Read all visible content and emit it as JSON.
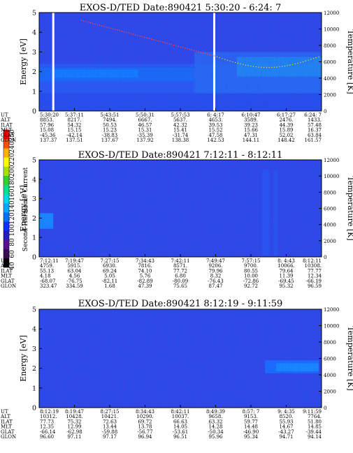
{
  "colorbar": {
    "label": "Second Harmonic Current",
    "ticks": [
      "40",
      "60",
      "80",
      "100",
      "120",
      "140",
      "160",
      "180",
      "200",
      "220",
      "240",
      "250"
    ],
    "colors": [
      "#000000",
      "#3a0a55",
      "#5a1090",
      "#2020c0",
      "#1030ff",
      "#0070ff",
      "#00a8ff",
      "#00d8e8",
      "#00e08a",
      "#30d030",
      "#a8e000",
      "#ffff00",
      "#ffb000",
      "#ff5000",
      "#ff0000"
    ]
  },
  "labels": {
    "row_names": [
      "UT",
      "ALT",
      "ILAT",
      "MLT",
      "GLAT",
      "GLON"
    ]
  },
  "chart_data": [
    {
      "type": "heatmap",
      "title": "EXOS-D/TED   Date:890421   5:30:20 - 6:24: 7",
      "ylabel": "Energy [eV]",
      "y2label": "Temperature [K]",
      "ylim": [
        0,
        5
      ],
      "y2lim": [
        0,
        12000
      ],
      "yticks": [
        "0",
        "1",
        "2",
        "3",
        "4",
        "5"
      ],
      "y2ticks": [
        "0",
        "2000",
        "4000",
        "6000",
        "8000",
        "10000",
        "12000"
      ],
      "gaps": [
        0.05,
        0.62
      ],
      "rows": {
        "UT": [
          "5:30:20",
          "5:37:11",
          "5:43:51",
          "5:50:31",
          "5:57:53",
          "6: 4:17",
          "6:10:47",
          "6:17:27",
          "6:24: 7"
        ],
        "ALT": [
          "8853.",
          "8217.",
          "7494.",
          "6667.",
          "5637.",
          "4653.",
          "3589.",
          "2476.",
          "1433."
        ],
        "ILAT": [
          "57.96",
          "54.32",
          "50.53",
          "46.57",
          "42.32",
          "39.53",
          "39.23",
          "44.39",
          "57.48"
        ],
        "MLT": [
          "15.08",
          "15.15",
          "15.23",
          "15.31",
          "15.41",
          "15.52",
          "15.66",
          "15.89",
          "16.37"
        ],
        "GLAT": [
          "-45.36",
          "-42.14",
          "-38.83",
          "-35.39",
          "-31.74",
          "47.58",
          "47.31",
          "52.02",
          "63.84"
        ],
        "GLON": [
          "137.37",
          "137.51",
          "137.67",
          "137.92",
          "138.38",
          "142.53",
          "144.11",
          "148.42",
          "161.57"
        ]
      }
    },
    {
      "type": "heatmap",
      "title": "EXOS-D/TED   Date:890421   7:12:11 - 8:12:11",
      "ylabel": "Energy [eV]",
      "y2label": "Temperature [K]",
      "ylim": [
        0,
        5
      ],
      "y2lim": [
        0,
        12000
      ],
      "yticks": [
        "0",
        "1",
        "2",
        "3",
        "4",
        "5"
      ],
      "y2ticks": [
        "0",
        "2000",
        "4000",
        "6000",
        "8000",
        "10000",
        "12000"
      ],
      "rows": {
        "UT": [
          "7:12:11",
          "7:19:47",
          "7:27:15",
          "7:34:43",
          "7:42:11",
          "7:49:47",
          "7:57:15",
          "8: 4:43",
          "8:12:11"
        ],
        "ALT": [
          "4759.",
          "5915.",
          "6930.",
          "7816.",
          "8571.",
          "9206.",
          "9700.",
          "10066.",
          "10308."
        ],
        "ILAT": [
          "55.13",
          "63.04",
          "69.24",
          "74.10",
          "77.72",
          "79.96",
          "80.55",
          "79.64",
          "77.77"
        ],
        "MLT": [
          "4.18",
          "4.56",
          "5.05",
          "5.76",
          "6.80",
          "8.32",
          "10.00",
          "11.39",
          "12.34"
        ],
        "GLAT": [
          "-68.07",
          "-76.75",
          "-82.11",
          "-82.89",
          "-80.09",
          "-76.43",
          "-72.86",
          "-69.45",
          "-66.19"
        ],
        "GLON": [
          "323.47",
          "334.59",
          "1.68",
          "47.39",
          "75.65",
          "87.47",
          "92.72",
          "95.32",
          "96.59"
        ]
      }
    },
    {
      "type": "heatmap",
      "title": "EXOS-D/TED   Date:890421   8:12:19 - 9:11:59",
      "ylabel": "Energy [eV]",
      "y2label": "Temperature [K]",
      "ylim": [
        0,
        5
      ],
      "y2lim": [
        0,
        12000
      ],
      "yticks": [
        "0",
        "1",
        "2",
        "3",
        "4",
        "5"
      ],
      "y2ticks": [
        "0",
        "2000",
        "4000",
        "6000",
        "8000",
        "10000",
        "12000"
      ],
      "rows": {
        "UT": [
          "8:12:19",
          "8:19:47",
          "8:27:15",
          "8:34:43",
          "8:42:11",
          "8:49:39",
          "8:57: 7",
          "9: 4:35",
          "9:11:59"
        ],
        "ALT": [
          "10312.",
          "10428.",
          "10421.",
          "10290.",
          "10037.",
          "9658.",
          "9153.",
          "8520.",
          "7764."
        ],
        "ILAT": [
          "77.73",
          "75.32",
          "72.63",
          "69.72",
          "66.63",
          "63.32",
          "59.77",
          "55.93",
          "51.80"
        ],
        "MLT": [
          "12.35",
          "12.99",
          "13.44",
          "13.78",
          "14.05",
          "14.28",
          "14.48",
          "14.67",
          "14.85"
        ],
        "GLAT": [
          "-66.14",
          "-62.98",
          "-59.88",
          "-56.77",
          "-53.61",
          "-50.34",
          "-46.90",
          "-43.27",
          "-39.44"
        ],
        "GLON": [
          "96.60",
          "97.11",
          "97.17",
          "96.94",
          "96.51",
          "95.96",
          "95.34",
          "94.71",
          "94.14"
        ]
      }
    }
  ]
}
